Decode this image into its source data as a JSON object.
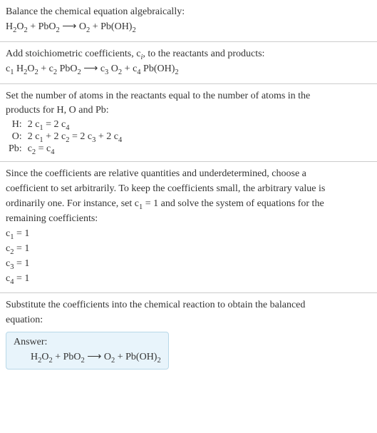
{
  "sec1": {
    "intro": "Balance the chemical equation algebraically:",
    "eq_parts": [
      "H",
      "2",
      "O",
      "2",
      " + PbO",
      "2",
      "  ⟶  O",
      "2",
      " + Pb(OH)",
      "2"
    ]
  },
  "sec2": {
    "intro_a": "Add stoichiometric coefficients, ",
    "intro_ci": "c",
    "intro_ci_sub": "i",
    "intro_b": ", to the reactants and products:",
    "eq_parts": [
      "c",
      "1",
      " H",
      "2",
      "O",
      "2",
      " + ",
      "c",
      "2",
      " PbO",
      "2",
      "  ⟶  ",
      "c",
      "3",
      " O",
      "2",
      " + ",
      "c",
      "4",
      " Pb(OH)",
      "2"
    ]
  },
  "sec3": {
    "intro1": "Set the number of atoms in the reactants equal to the number of atoms in the",
    "intro2": "products for H, O and Pb:",
    "rows": [
      {
        "lbl": "H:",
        "lhs_a": "2 c",
        "lhs_as": "1",
        "mid": " = 2 c",
        "rhs_s": "4",
        "tail": ""
      },
      {
        "lbl": "O:",
        "lhs_a": "2 c",
        "lhs_as": "1",
        "mid": " + 2 c",
        "rhs_s": "2",
        "tail_a": " = 2 c",
        "tail_as": "3",
        "tail_b": " + 2 c",
        "tail_bs": "4"
      },
      {
        "lbl": "Pb:",
        "lhs_a": "c",
        "lhs_as": "2",
        "mid": " = c",
        "rhs_s": "4",
        "tail": ""
      }
    ]
  },
  "sec4": {
    "p1": "Since the coefficients are relative quantities and underdetermined, choose a",
    "p2": "coefficient to set arbitrarily. To keep the coefficients small, the arbitrary value is",
    "p3a": "ordinarily one. For instance, set c",
    "p3s": "1",
    "p3b": " = 1 and solve the system of equations for the",
    "p4": "remaining coefficients:",
    "coeffs": [
      {
        "c": "c",
        "s": "1",
        "v": " = 1"
      },
      {
        "c": "c",
        "s": "2",
        "v": " = 1"
      },
      {
        "c": "c",
        "s": "3",
        "v": " = 1"
      },
      {
        "c": "c",
        "s": "4",
        "v": " = 1"
      }
    ]
  },
  "sec5": {
    "p1": "Substitute the coefficients into the chemical reaction to obtain the balanced",
    "p2": "equation:",
    "answer_title": "Answer:",
    "eq_parts": [
      "H",
      "2",
      "O",
      "2",
      " + PbO",
      "2",
      "  ⟶  O",
      "2",
      " + Pb(OH)",
      "2"
    ]
  }
}
